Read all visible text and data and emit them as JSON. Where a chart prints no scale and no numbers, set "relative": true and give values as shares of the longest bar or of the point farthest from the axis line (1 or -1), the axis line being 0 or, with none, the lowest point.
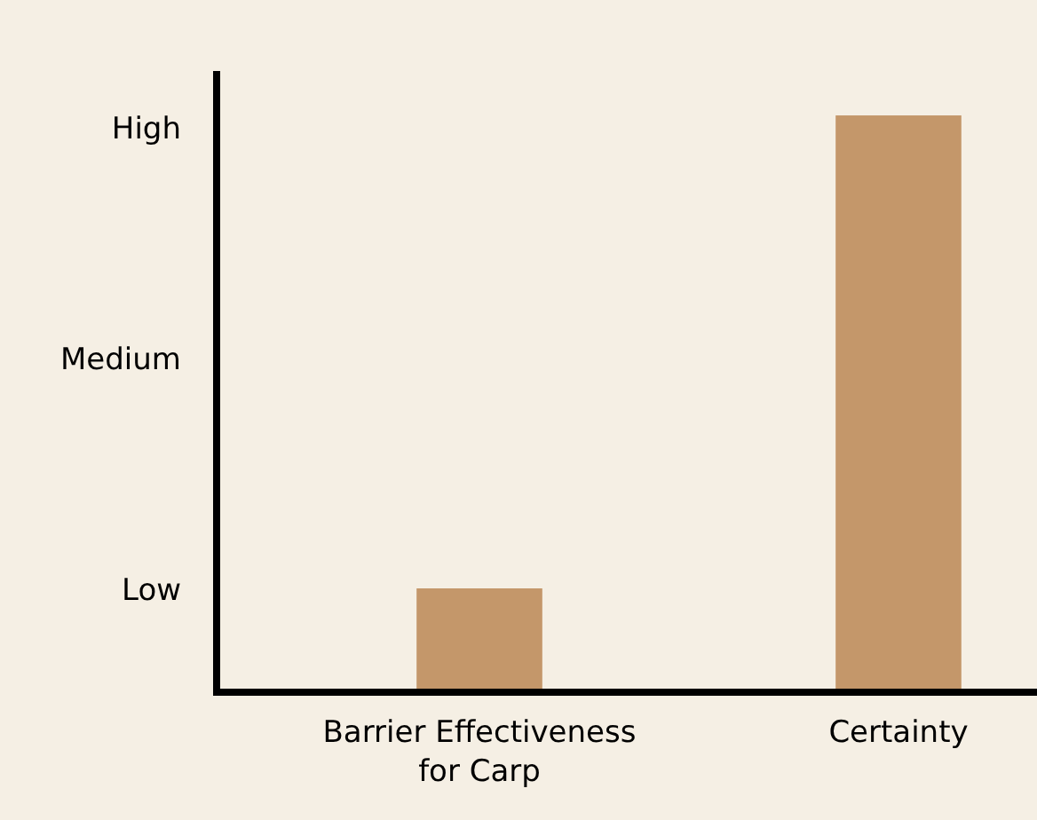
{
  "chart_data": {
    "type": "bar",
    "categories": [
      "Barrier Effectiveness for Carp",
      "Certainty"
    ],
    "values": [
      0.18,
      1
    ],
    "color": "#c4976a",
    "relative": true,
    "annotations": [
      "Low",
      "Medium",
      "High"
    ]
  }
}
